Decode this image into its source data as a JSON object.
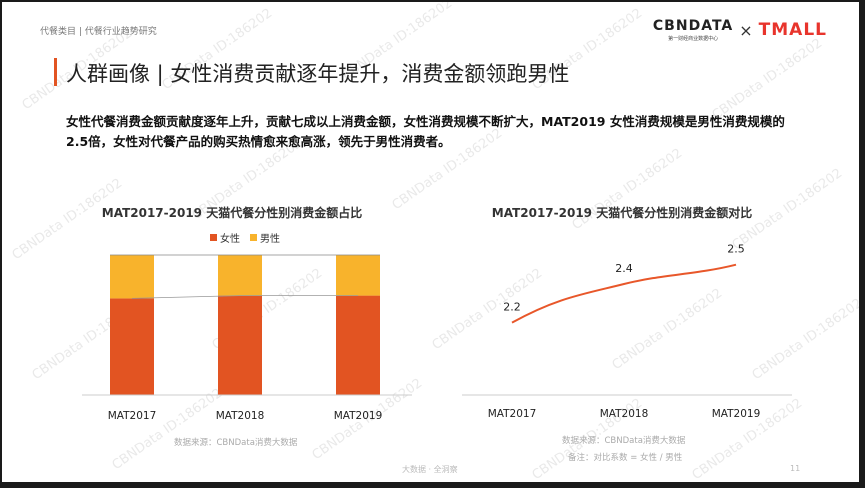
{
  "header": {
    "breadcrumb": "代餐类目 | 代餐行业趋势研究",
    "logo_cbn": "CBNDATA",
    "logo_cbn_sub": "第一财经商业数据中心",
    "logo_times": "×",
    "logo_tmall": "TMALL"
  },
  "page": {
    "title": "人群画像 | 女性消费贡献逐年提升，消费金额领跑男性",
    "summary": "女性代餐消费金额贡献度逐年上升，贡献七成以上消费金额，女性消费规模不断扩大，MAT2019 女性消费规模是男性消费规模的2.5倍，女性对代餐产品的购买热情愈来愈高涨，领先于男性消费者。"
  },
  "colors": {
    "female": "#e25422",
    "male": "#f8b32c",
    "line": "#e8572a",
    "accent": "#e25422"
  },
  "watermark_text": "CBNData ID:186202",
  "chart_data": [
    {
      "type": "bar",
      "title": "MAT2017-2019 天猫代餐分性别消费金额占比",
      "categories": [
        "MAT2017",
        "MAT2018",
        "MAT2019"
      ],
      "series": [
        {
          "name": "女性",
          "values": [
            0.69,
            0.71,
            0.71
          ]
        },
        {
          "name": "男性",
          "values": [
            0.31,
            0.29,
            0.29
          ]
        }
      ],
      "stacked": true,
      "ylim": [
        0,
        1
      ],
      "legend_position": "top"
    },
    {
      "type": "line",
      "title": "MAT2017-2019 天猫代餐分性别消费金额对比",
      "categories": [
        "MAT2017",
        "MAT2018",
        "MAT2019"
      ],
      "values": [
        2.2,
        2.4,
        2.5
      ],
      "value_labels": [
        "2.2",
        "2.4",
        "2.5"
      ]
    }
  ],
  "sources": {
    "left": "数据来源：CBNData消费大数据",
    "right": "数据来源：CBNData消费大数据",
    "note": "备注：对比系数 = 女性 / 男性"
  },
  "footer": {
    "center": "大数据 · 全洞察",
    "page_number": "11"
  }
}
